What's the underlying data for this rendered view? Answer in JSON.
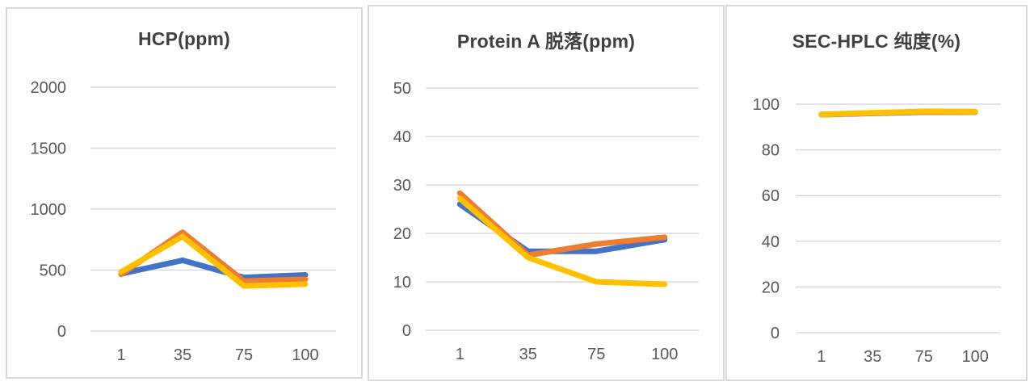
{
  "page": {
    "background": "#ffffff",
    "panel_background": "#ffffff",
    "panel_border_color": "#d9d9d9"
  },
  "styles": {
    "title_color": "#404040",
    "tick_label_color": "#595959",
    "gridline_color": "#d9d9d9",
    "series_colors": {
      "blue": "#4472C4",
      "orange": "#ED7D31",
      "yellow": "#FFC000"
    }
  },
  "chart_data": [
    {
      "type": "line",
      "title": "HCP(ppm)",
      "xlabel": "",
      "ylabel": "",
      "categories": [
        "1",
        "35",
        "75",
        "100"
      ],
      "yticks": [
        0,
        500,
        1000,
        1500,
        2000
      ],
      "ylim": [
        0,
        2000
      ],
      "grid": true,
      "legend": "none",
      "series": [
        {
          "name": "blue",
          "color": "#4472C4",
          "values": [
            470,
            580,
            440,
            460
          ]
        },
        {
          "name": "orange",
          "color": "#ED7D31",
          "values": [
            465,
            810,
            410,
            425
          ]
        },
        {
          "name": "yellow",
          "color": "#FFC000",
          "values": [
            485,
            775,
            370,
            385
          ]
        }
      ]
    },
    {
      "type": "line",
      "title": "Protein A 脱落(ppm)",
      "xlabel": "",
      "ylabel": "",
      "categories": [
        "1",
        "35",
        "75",
        "100"
      ],
      "yticks": [
        0,
        10,
        20,
        30,
        40,
        50
      ],
      "ylim": [
        0,
        50
      ],
      "grid": true,
      "legend": "none",
      "series": [
        {
          "name": "blue",
          "color": "#4472C4",
          "values": [
            26,
            16.3,
            16.3,
            18.7
          ]
        },
        {
          "name": "orange",
          "color": "#ED7D31",
          "values": [
            28.3,
            15.5,
            17.8,
            19.2
          ]
        },
        {
          "name": "yellow",
          "color": "#FFC000",
          "values": [
            27.2,
            15,
            10,
            9.5
          ]
        }
      ]
    },
    {
      "type": "line",
      "title": "SEC-HPLC 纯度(%)",
      "xlabel": "",
      "ylabel": "",
      "categories": [
        "1",
        "35",
        "75",
        "100"
      ],
      "yticks": [
        0,
        20,
        40,
        60,
        80,
        100
      ],
      "ylim": [
        0,
        100
      ],
      "grid": true,
      "legend": "none",
      "series": [
        {
          "name": "blue",
          "color": "#4472C4",
          "values": [
            95.4,
            96.0,
            96.5,
            96.5
          ]
        },
        {
          "name": "orange",
          "color": "#ED7D31",
          "values": [
            95.5,
            96.1,
            96.6,
            96.7
          ]
        },
        {
          "name": "yellow",
          "color": "#FFC000",
          "values": [
            95.5,
            96.2,
            96.8,
            96.7
          ]
        }
      ]
    }
  ]
}
